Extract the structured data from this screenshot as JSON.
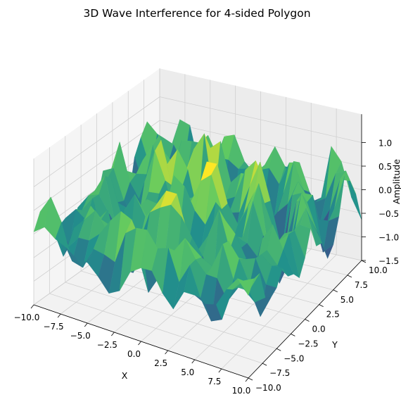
{
  "chart_data": {
    "type": "surface3d",
    "title": "3D Wave Interference for 4-sided Polygon",
    "xlabel": "X",
    "ylabel": "Y",
    "zlabel": "Amplitude",
    "x_ticks": [
      "−10.0",
      "−7.5",
      "−5.0",
      "−2.5",
      "0.0",
      "2.5",
      "5.0",
      "7.5",
      "10.0"
    ],
    "y_ticks": [
      "−10.0",
      "−7.5",
      "−5.0",
      "−2.5",
      "0.0",
      "2.5",
      "5.0",
      "7.5",
      "10.0"
    ],
    "z_ticks": [
      "−1.5",
      "−1.0",
      "−0.5",
      "0.0",
      "0.5",
      "1.0"
    ],
    "xlim": [
      -10,
      10
    ],
    "ylim": [
      -10,
      10
    ],
    "zlim": [
      -1.5,
      1.3
    ],
    "colormap": "viridis",
    "colors": [
      "#440154",
      "#3b528b",
      "#21918c",
      "#5ec962",
      "#fde725"
    ],
    "grid": true,
    "surface_description": "noisy interference surface, amplitude roughly between -1.5 and 1.3, higher peaks near the centre"
  }
}
